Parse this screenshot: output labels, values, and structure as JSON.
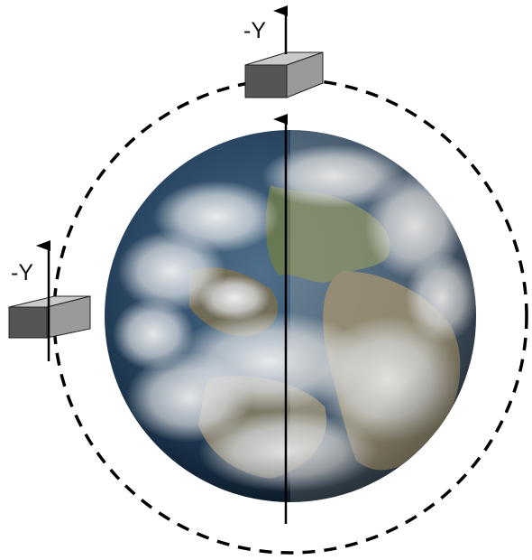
{
  "labels": {
    "top_axis": "-Y",
    "left_axis": "-Y"
  },
  "colors": {
    "background": "#ffffff",
    "stroke": "#000000",
    "satellite_front": "#555555",
    "satellite_side": "#9a9a9a",
    "satellite_top": "#c8c8c8",
    "ocean": "#1f3b5a",
    "land": "#6f6a4a",
    "cloud": "#e8eaec"
  },
  "icons": {
    "earth": "earth-globe-icon",
    "satellite": "satellite-box-icon",
    "arrow": "arrow-up-icon"
  }
}
